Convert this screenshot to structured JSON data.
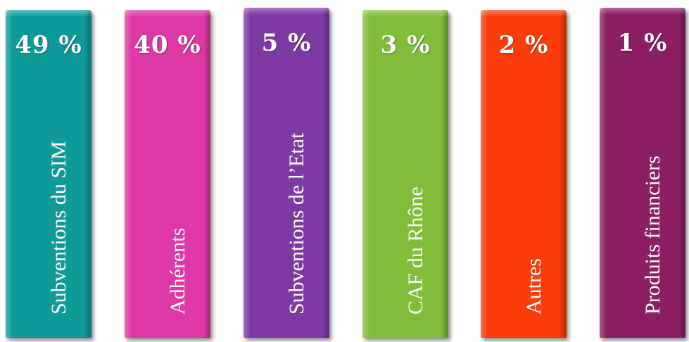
{
  "chart_data": {
    "type": "bar",
    "categories": [
      "Subventions du SIM",
      "Adhérents",
      "Subventions de l’Etat",
      "CAF du Rhône",
      "Autres",
      "Produits financiers"
    ],
    "values": [
      49,
      40,
      5,
      3,
      2,
      1
    ],
    "value_labels": [
      "49 %",
      "40 %",
      "5 %",
      "3 %",
      "2 %",
      "1 %"
    ],
    "colors": [
      "#0e9a98",
      "#dd38a3",
      "#7d3aa2",
      "#80be3a",
      "#fb3c0b",
      "#8c1e64"
    ],
    "title": "",
    "xlabel": "",
    "ylabel": "",
    "legend": "none",
    "grid": false
  }
}
